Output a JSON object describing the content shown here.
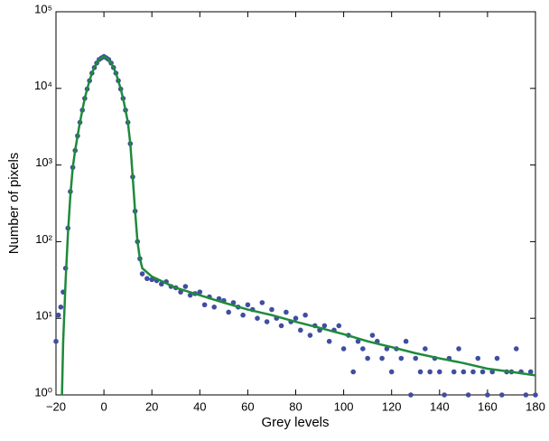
{
  "chart_data": {
    "type": "scatter",
    "x_label": "Grey levels",
    "y_label": "Number of pixels",
    "yscale": "log",
    "xlim": [
      -20,
      180
    ],
    "ylim": [
      1,
      100000
    ],
    "xticks": [
      {
        "value": -20,
        "label": "−20"
      },
      0,
      20,
      40,
      60,
      80,
      100,
      120,
      140,
      160,
      180
    ],
    "yticks": [
      {
        "value": 1,
        "label": "10⁰"
      },
      {
        "value": 10,
        "label": "10¹"
      },
      {
        "value": 100,
        "label": "10²"
      },
      {
        "value": 1000,
        "label": "10³"
      },
      {
        "value": 10000,
        "label": "10⁴"
      },
      {
        "value": 100000,
        "label": "10⁵"
      }
    ],
    "series": [
      {
        "type": "scatter",
        "color": "#3f4ea0",
        "x": [
          -20,
          -19,
          -18,
          -17,
          -16,
          -15,
          -14,
          -13,
          -12,
          -11,
          -10,
          -9,
          -8,
          -7,
          -6,
          -5,
          -4,
          -3,
          -2,
          -1,
          0,
          1,
          2,
          3,
          4,
          5,
          6,
          7,
          8,
          9,
          10,
          11,
          12,
          13,
          14,
          15,
          16,
          18,
          20,
          22,
          24,
          26,
          28,
          30,
          32,
          34,
          36,
          38,
          40,
          42,
          44,
          46,
          48,
          50,
          52,
          54,
          56,
          58,
          60,
          62,
          64,
          66,
          68,
          70,
          72,
          74,
          76,
          78,
          80,
          82,
          84,
          86,
          88,
          90,
          92,
          94,
          96,
          98,
          100,
          102,
          104,
          106,
          108,
          110,
          112,
          114,
          116,
          118,
          120,
          122,
          124,
          126,
          128,
          130,
          132,
          134,
          136,
          138,
          140,
          142,
          144,
          146,
          148,
          150,
          152,
          154,
          156,
          158,
          160,
          162,
          164,
          166,
          168,
          170,
          172,
          174,
          176,
          178,
          180
        ],
        "values": [
          5,
          11,
          14,
          22,
          45,
          150,
          450,
          930,
          1550,
          2400,
          3600,
          5200,
          7400,
          9800,
          12600,
          15800,
          18700,
          21400,
          23800,
          25000,
          26000,
          25000,
          23800,
          21400,
          18700,
          15800,
          12600,
          9800,
          7400,
          5200,
          3600,
          1900,
          700,
          250,
          100,
          60,
          38,
          33,
          32,
          31,
          28,
          30,
          26,
          25,
          22,
          26,
          20,
          21,
          22,
          15,
          19,
          14,
          18,
          17,
          12,
          16,
          14,
          11,
          15,
          13,
          10,
          16,
          9,
          13,
          10,
          8,
          12,
          9,
          10,
          7,
          11,
          6,
          8,
          7,
          8,
          5,
          7,
          8,
          4,
          6,
          2,
          5,
          4,
          3,
          6,
          5,
          3,
          4,
          2,
          4,
          3,
          5,
          1,
          3,
          2,
          4,
          2,
          3,
          2,
          1,
          3,
          2,
          4,
          2,
          1,
          2,
          3,
          2,
          1,
          2,
          3,
          1,
          2,
          2,
          4,
          2,
          1,
          2,
          1
        ]
      },
      {
        "type": "line",
        "color": "#1f8a3b",
        "x": [
          -17.5,
          -17,
          -16,
          -15,
          -14,
          -13,
          -12,
          -11,
          -10,
          -9,
          -8,
          -7,
          -6,
          -5,
          -4,
          -3,
          -2,
          -1,
          0,
          1,
          2,
          3,
          4,
          5,
          6,
          7,
          8,
          9,
          10,
          11,
          12,
          13,
          14,
          15,
          16,
          20,
          30,
          40,
          50,
          60,
          70,
          80,
          90,
          100,
          110,
          120,
          130,
          140,
          150,
          160,
          170,
          180
        ],
        "values": [
          1,
          5,
          30,
          130,
          400,
          930,
          1550,
          2400,
          3600,
          5200,
          7400,
          9800,
          12600,
          15800,
          18700,
          21400,
          23800,
          25000,
          26000,
          25000,
          23800,
          21400,
          18700,
          15800,
          12600,
          9800,
          7400,
          5200,
          3600,
          1900,
          700,
          250,
          100,
          60,
          45,
          35,
          25,
          20,
          16,
          13,
          11,
          9,
          7.5,
          6.2,
          5,
          4.2,
          3.5,
          3,
          2.6,
          2.2,
          2,
          1.8
        ]
      }
    ]
  }
}
